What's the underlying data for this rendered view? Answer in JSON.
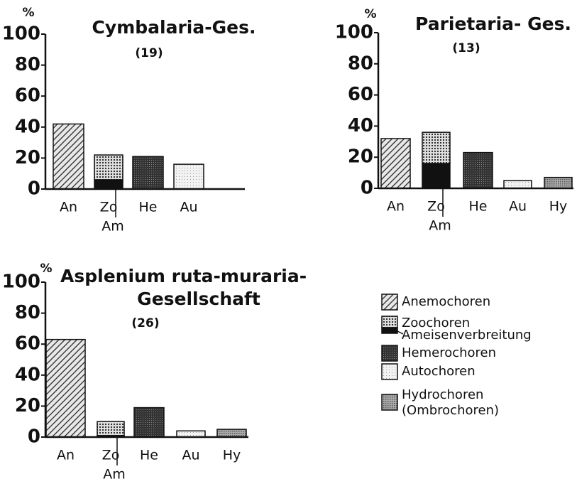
{
  "chart_data": [
    {
      "type": "bar",
      "title": [
        "Cymbalaria-Ges."
      ],
      "subtitle": "(19)",
      "y_label": "%",
      "categories": [
        "An",
        "Zo",
        "He",
        "Au"
      ],
      "values": [
        42,
        16,
        21,
        16
      ],
      "stack_label": "Am",
      "stack_value": 6,
      "ylim": [
        0,
        100
      ],
      "yticks": [
        0,
        20,
        40,
        60,
        80,
        100
      ]
    },
    {
      "type": "bar",
      "title": [
        "Parietaria- Ges."
      ],
      "subtitle": "(13)",
      "y_label": "%",
      "categories": [
        "An",
        "Zo",
        "He",
        "Au",
        "Hy"
      ],
      "values": [
        32,
        20,
        23,
        5,
        7
      ],
      "stack_label": "Am",
      "stack_value": 16,
      "ylim": [
        0,
        100
      ],
      "yticks": [
        0,
        20,
        40,
        60,
        80,
        100
      ]
    },
    {
      "type": "bar",
      "title": [
        "Asplenium ruta-muraria-",
        "Gesellschaft"
      ],
      "subtitle": "(26)",
      "y_label": "%",
      "categories": [
        "An",
        "Zo",
        "He",
        "Au",
        "Hy"
      ],
      "values": [
        63,
        9,
        19,
        4,
        5
      ],
      "stack_label": "Am",
      "stack_value": 1,
      "ylim": [
        0,
        100
      ],
      "yticks": [
        0,
        20,
        40,
        60,
        80,
        100
      ]
    }
  ],
  "legend": [
    {
      "name": "Anemochoren",
      "pattern": "hatch"
    },
    {
      "name": "Zoochoren",
      "pattern": "dots"
    },
    {
      "name": "Ameisenverbreitung",
      "pattern": "black"
    },
    {
      "name": "Hemerochoren",
      "pattern": "dark"
    },
    {
      "name": "Autochoren",
      "pattern": "light"
    },
    {
      "name": "Hydrochoren",
      "note": "(Ombrochoren)",
      "pattern": "medium"
    }
  ]
}
